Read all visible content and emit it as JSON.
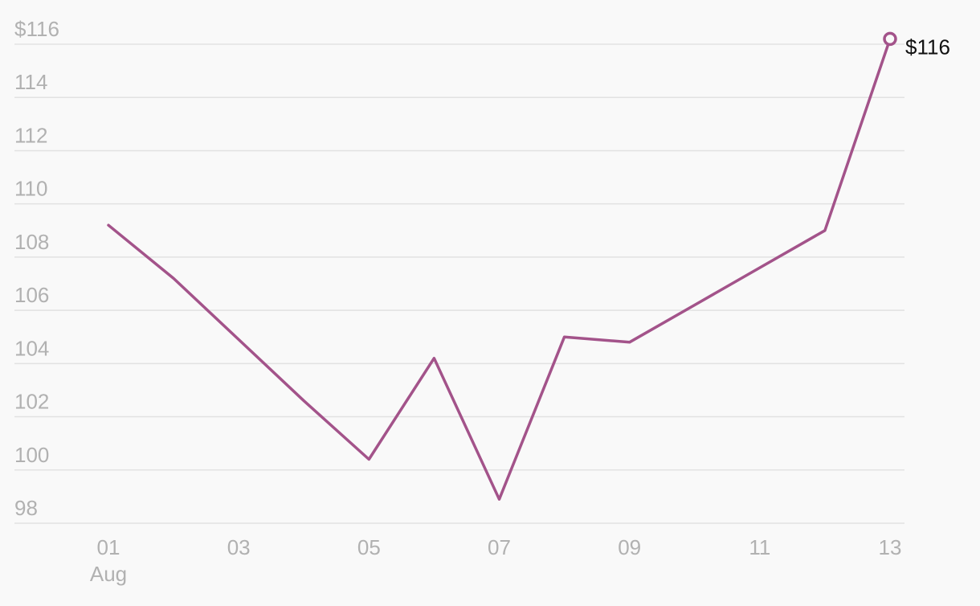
{
  "chart_data": {
    "type": "line",
    "title": "",
    "xlabel": "",
    "ylabel": "",
    "x": [
      "01",
      "02",
      "03",
      "04",
      "05",
      "06",
      "07",
      "08",
      "09",
      "10",
      "11",
      "12",
      "13"
    ],
    "x_tick_labels": [
      "01",
      "03",
      "05",
      "07",
      "09",
      "11",
      "13"
    ],
    "x_month_label": "Aug",
    "y_ticks": [
      98,
      100,
      102,
      104,
      106,
      108,
      110,
      112,
      114,
      116
    ],
    "y_tick_labels": [
      "98",
      "100",
      "102",
      "104",
      "106",
      "108",
      "110",
      "112",
      "114",
      "$116"
    ],
    "ylim": [
      98,
      116
    ],
    "grid": true,
    "legend": "none",
    "series": [
      {
        "values": [
          109.2,
          107.2,
          104.9,
          102.6,
          100.4,
          104.2,
          98.9,
          105.0,
          104.8,
          106.2,
          107.6,
          109.0,
          116.2
        ],
        "color": "#a3538a"
      }
    ],
    "end_label": "$116"
  }
}
